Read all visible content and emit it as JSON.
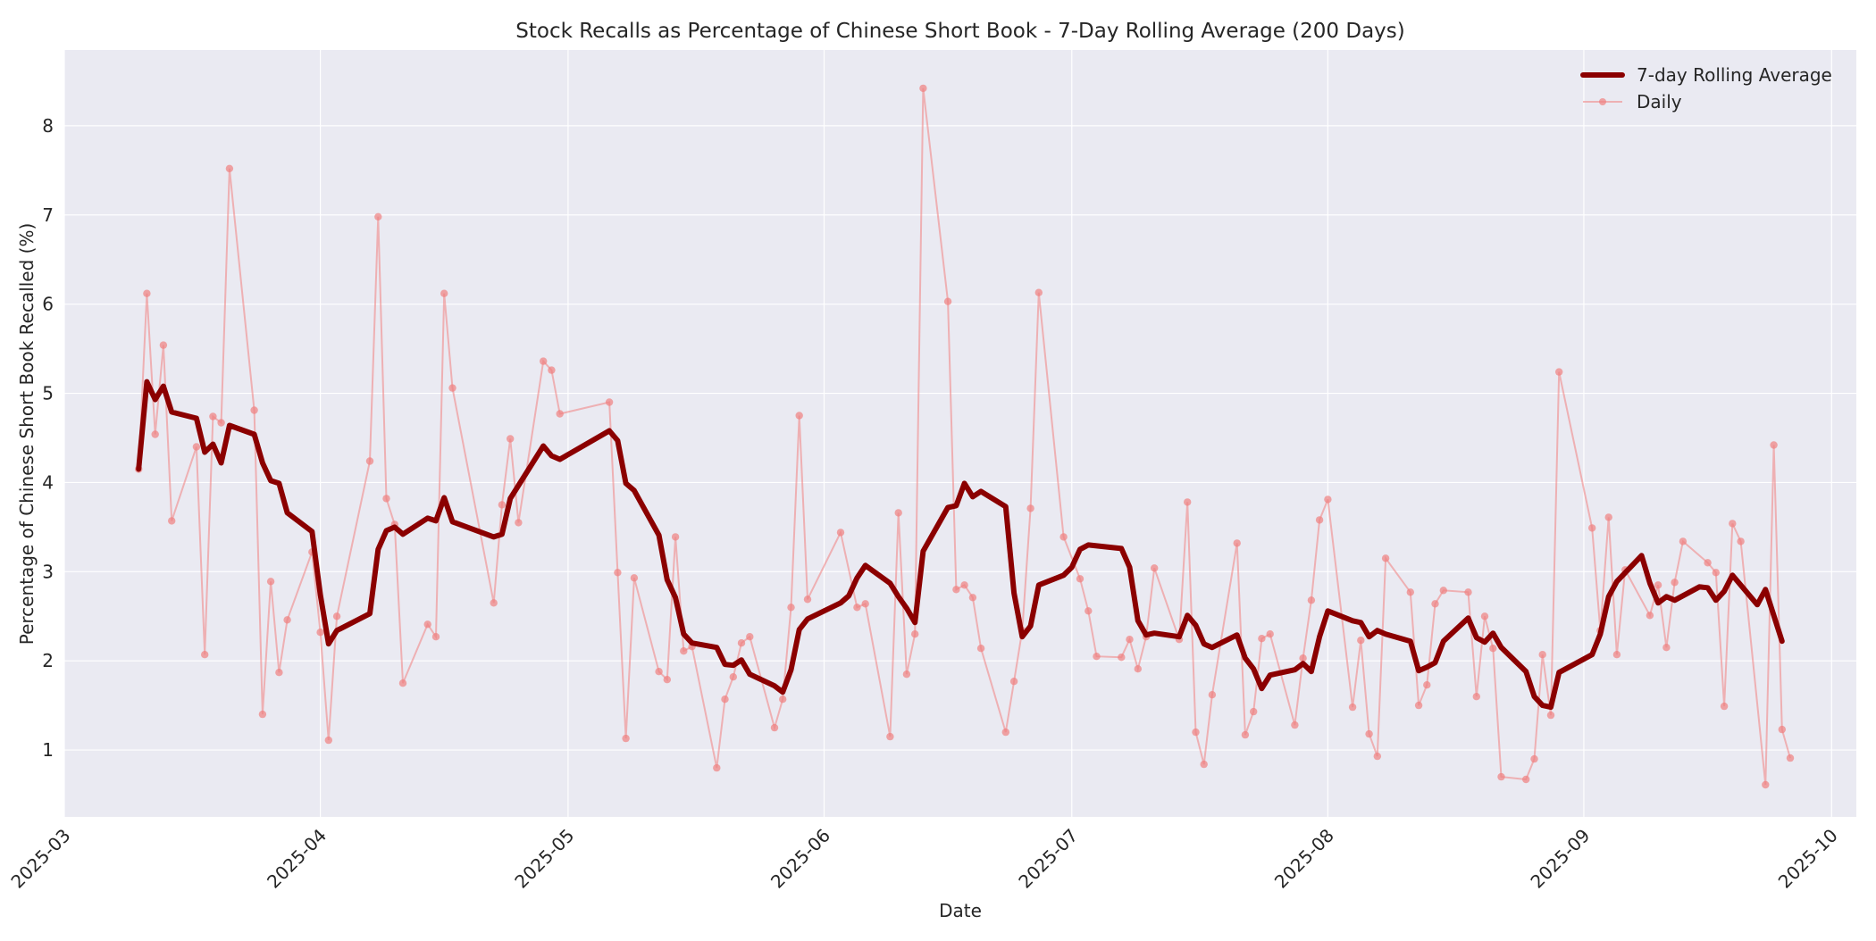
{
  "chart_data": {
    "type": "line",
    "title": "Stock Recalls as Percentage of Chinese Short Book - 7-Day Rolling Average (200 Days)",
    "xlabel": "Date",
    "ylabel": "Percentage of Chinese Short Book Recalled (%)",
    "ylim": [
      0.25,
      8.85
    ],
    "xlim": [
      "2025-03-01",
      "2025-10-04"
    ],
    "grid": true,
    "legend_position": "upper right",
    "x_ticks": [
      "2025-03",
      "2025-04",
      "2025-05",
      "2025-06",
      "2025-07",
      "2025-08",
      "2025-09",
      "2025-10"
    ],
    "y_ticks": [
      1,
      2,
      3,
      4,
      5,
      6,
      7,
      8
    ],
    "colors": {
      "rolling": "#8b0000",
      "daily": "#f08080",
      "plot_background": "#eaeaf2",
      "grid": "#ffffff"
    },
    "series": [
      {
        "name": "7-day Rolling Average",
        "style": "thick-line",
        "points": [
          [
            "2025-03-10",
            4.15
          ],
          [
            "2025-03-11",
            5.13
          ],
          [
            "2025-03-12",
            4.93
          ],
          [
            "2025-03-13",
            5.08
          ],
          [
            "2025-03-14",
            4.79
          ],
          [
            "2025-03-17",
            4.72
          ],
          [
            "2025-03-18",
            4.34
          ],
          [
            "2025-03-19",
            4.43
          ],
          [
            "2025-03-20",
            4.22
          ],
          [
            "2025-03-21",
            4.64
          ],
          [
            "2025-03-24",
            4.54
          ],
          [
            "2025-03-25",
            4.22
          ],
          [
            "2025-03-26",
            4.02
          ],
          [
            "2025-03-27",
            3.99
          ],
          [
            "2025-03-28",
            3.66
          ],
          [
            "2025-03-31",
            3.45
          ],
          [
            "2025-04-01",
            2.74
          ],
          [
            "2025-04-02",
            2.19
          ],
          [
            "2025-04-03",
            2.34
          ],
          [
            "2025-04-07",
            2.53
          ],
          [
            "2025-04-08",
            3.25
          ],
          [
            "2025-04-09",
            3.46
          ],
          [
            "2025-04-10",
            3.5
          ],
          [
            "2025-04-11",
            3.42
          ],
          [
            "2025-04-14",
            3.6
          ],
          [
            "2025-04-15",
            3.57
          ],
          [
            "2025-04-16",
            3.83
          ],
          [
            "2025-04-17",
            3.56
          ],
          [
            "2025-04-22",
            3.39
          ],
          [
            "2025-04-23",
            3.42
          ],
          [
            "2025-04-24",
            3.82
          ],
          [
            "2025-04-28",
            4.41
          ],
          [
            "2025-04-29",
            4.3
          ],
          [
            "2025-04-30",
            4.26
          ],
          [
            "2025-05-06",
            4.58
          ],
          [
            "2025-05-07",
            4.47
          ],
          [
            "2025-05-08",
            3.99
          ],
          [
            "2025-05-09",
            3.91
          ],
          [
            "2025-05-12",
            3.41
          ],
          [
            "2025-05-13",
            2.91
          ],
          [
            "2025-05-14",
            2.71
          ],
          [
            "2025-05-15",
            2.3
          ],
          [
            "2025-05-16",
            2.2
          ],
          [
            "2025-05-19",
            2.15
          ],
          [
            "2025-05-20",
            1.96
          ],
          [
            "2025-05-21",
            1.95
          ],
          [
            "2025-05-22",
            2.01
          ],
          [
            "2025-05-23",
            1.85
          ],
          [
            "2025-05-26",
            1.72
          ],
          [
            "2025-05-27",
            1.65
          ],
          [
            "2025-05-28",
            1.9
          ],
          [
            "2025-05-29",
            2.35
          ],
          [
            "2025-05-30",
            2.47
          ],
          [
            "2025-06-03",
            2.65
          ],
          [
            "2025-06-04",
            2.73
          ],
          [
            "2025-06-05",
            2.93
          ],
          [
            "2025-06-06",
            3.07
          ],
          [
            "2025-06-09",
            2.87
          ],
          [
            "2025-06-10",
            2.72
          ],
          [
            "2025-06-11",
            2.59
          ],
          [
            "2025-06-12",
            2.43
          ],
          [
            "2025-06-13",
            3.23
          ],
          [
            "2025-06-16",
            3.72
          ],
          [
            "2025-06-17",
            3.74
          ],
          [
            "2025-06-18",
            3.99
          ],
          [
            "2025-06-19",
            3.84
          ],
          [
            "2025-06-20",
            3.9
          ],
          [
            "2025-06-23",
            3.73
          ],
          [
            "2025-06-24",
            2.76
          ],
          [
            "2025-06-25",
            2.27
          ],
          [
            "2025-06-26",
            2.39
          ],
          [
            "2025-06-27",
            2.85
          ],
          [
            "2025-06-30",
            2.96
          ],
          [
            "2025-07-01",
            3.05
          ],
          [
            "2025-07-02",
            3.25
          ],
          [
            "2025-07-03",
            3.3
          ],
          [
            "2025-07-07",
            3.26
          ],
          [
            "2025-07-08",
            3.05
          ],
          [
            "2025-07-09",
            2.45
          ],
          [
            "2025-07-10",
            2.29
          ],
          [
            "2025-07-11",
            2.31
          ],
          [
            "2025-07-14",
            2.27
          ],
          [
            "2025-07-15",
            2.51
          ],
          [
            "2025-07-16",
            2.4
          ],
          [
            "2025-07-17",
            2.19
          ],
          [
            "2025-07-18",
            2.15
          ],
          [
            "2025-07-21",
            2.29
          ],
          [
            "2025-07-22",
            2.03
          ],
          [
            "2025-07-23",
            1.91
          ],
          [
            "2025-07-24",
            1.69
          ],
          [
            "2025-07-25",
            1.84
          ],
          [
            "2025-07-28",
            1.9
          ],
          [
            "2025-07-29",
            1.97
          ],
          [
            "2025-07-30",
            1.88
          ],
          [
            "2025-07-31",
            2.27
          ],
          [
            "2025-08-01",
            2.56
          ],
          [
            "2025-08-04",
            2.45
          ],
          [
            "2025-08-05",
            2.43
          ],
          [
            "2025-08-06",
            2.27
          ],
          [
            "2025-08-07",
            2.34
          ],
          [
            "2025-08-08",
            2.3
          ],
          [
            "2025-08-11",
            2.22
          ],
          [
            "2025-08-12",
            1.89
          ],
          [
            "2025-08-13",
            1.93
          ],
          [
            "2025-08-14",
            1.98
          ],
          [
            "2025-08-15",
            2.22
          ],
          [
            "2025-08-18",
            2.48
          ],
          [
            "2025-08-19",
            2.26
          ],
          [
            "2025-08-20",
            2.21
          ],
          [
            "2025-08-21",
            2.31
          ],
          [
            "2025-08-22",
            2.15
          ],
          [
            "2025-08-25",
            1.88
          ],
          [
            "2025-08-26",
            1.6
          ],
          [
            "2025-08-27",
            1.5
          ],
          [
            "2025-08-28",
            1.48
          ],
          [
            "2025-08-29",
            1.87
          ],
          [
            "2025-09-02",
            2.07
          ],
          [
            "2025-09-03",
            2.3
          ],
          [
            "2025-09-04",
            2.72
          ],
          [
            "2025-09-05",
            2.89
          ],
          [
            "2025-09-08",
            3.18
          ],
          [
            "2025-09-09",
            2.87
          ],
          [
            "2025-09-10",
            2.65
          ],
          [
            "2025-09-11",
            2.72
          ],
          [
            "2025-09-12",
            2.68
          ],
          [
            "2025-09-15",
            2.83
          ],
          [
            "2025-09-16",
            2.82
          ],
          [
            "2025-09-17",
            2.68
          ],
          [
            "2025-09-18",
            2.78
          ],
          [
            "2025-09-19",
            2.96
          ],
          [
            "2025-09-22",
            2.63
          ],
          [
            "2025-09-23",
            2.8
          ],
          [
            "2025-09-25",
            2.22
          ]
        ]
      },
      {
        "name": "Daily",
        "style": "thin-line-markers",
        "points": [
          [
            "2025-03-10",
            4.15
          ],
          [
            "2025-03-11",
            6.12
          ],
          [
            "2025-03-12",
            4.54
          ],
          [
            "2025-03-13",
            5.54
          ],
          [
            "2025-03-14",
            3.57
          ],
          [
            "2025-03-17",
            4.4
          ],
          [
            "2025-03-18",
            2.07
          ],
          [
            "2025-03-19",
            4.74
          ],
          [
            "2025-03-20",
            4.67
          ],
          [
            "2025-03-21",
            7.52
          ],
          [
            "2025-03-24",
            4.81
          ],
          [
            "2025-03-25",
            1.4
          ],
          [
            "2025-03-26",
            2.89
          ],
          [
            "2025-03-27",
            1.87
          ],
          [
            "2025-03-28",
            2.46
          ],
          [
            "2025-03-31",
            3.22
          ],
          [
            "2025-04-01",
            2.32
          ],
          [
            "2025-04-02",
            1.11
          ],
          [
            "2025-04-03",
            2.5
          ],
          [
            "2025-04-07",
            4.24
          ],
          [
            "2025-04-08",
            6.98
          ],
          [
            "2025-04-09",
            3.82
          ],
          [
            "2025-04-10",
            3.53
          ],
          [
            "2025-04-11",
            1.75
          ],
          [
            "2025-04-14",
            2.41
          ],
          [
            "2025-04-15",
            2.27
          ],
          [
            "2025-04-16",
            6.12
          ],
          [
            "2025-04-17",
            5.06
          ],
          [
            "2025-04-22",
            2.65
          ],
          [
            "2025-04-23",
            3.75
          ],
          [
            "2025-04-24",
            4.49
          ],
          [
            "2025-04-25",
            3.55
          ],
          [
            "2025-04-28",
            5.36
          ],
          [
            "2025-04-29",
            5.26
          ],
          [
            "2025-04-30",
            4.77
          ],
          [
            "2025-05-06",
            4.9
          ],
          [
            "2025-05-07",
            2.99
          ],
          [
            "2025-05-08",
            1.13
          ],
          [
            "2025-05-09",
            2.93
          ],
          [
            "2025-05-12",
            1.88
          ],
          [
            "2025-05-13",
            1.79
          ],
          [
            "2025-05-14",
            3.39
          ],
          [
            "2025-05-15",
            2.11
          ],
          [
            "2025-05-16",
            2.16
          ],
          [
            "2025-05-19",
            0.8
          ],
          [
            "2025-05-20",
            1.57
          ],
          [
            "2025-05-21",
            1.82
          ],
          [
            "2025-05-22",
            2.2
          ],
          [
            "2025-05-23",
            2.27
          ],
          [
            "2025-05-26",
            1.25
          ],
          [
            "2025-05-27",
            1.57
          ],
          [
            "2025-05-28",
            2.6
          ],
          [
            "2025-05-29",
            4.75
          ],
          [
            "2025-05-30",
            2.69
          ],
          [
            "2025-06-03",
            3.44
          ],
          [
            "2025-06-05",
            2.6
          ],
          [
            "2025-06-06",
            2.64
          ],
          [
            "2025-06-09",
            1.15
          ],
          [
            "2025-06-10",
            3.66
          ],
          [
            "2025-06-11",
            1.85
          ],
          [
            "2025-06-12",
            2.3
          ],
          [
            "2025-06-13",
            8.42
          ],
          [
            "2025-06-16",
            6.03
          ],
          [
            "2025-06-17",
            2.8
          ],
          [
            "2025-06-18",
            2.85
          ],
          [
            "2025-06-19",
            2.71
          ],
          [
            "2025-06-20",
            2.14
          ],
          [
            "2025-06-23",
            1.2
          ],
          [
            "2025-06-24",
            1.77
          ],
          [
            "2025-06-25",
            2.34
          ],
          [
            "2025-06-26",
            3.71
          ],
          [
            "2025-06-27",
            6.13
          ],
          [
            "2025-06-30",
            3.39
          ],
          [
            "2025-07-02",
            2.92
          ],
          [
            "2025-07-03",
            2.56
          ],
          [
            "2025-07-04",
            2.05
          ],
          [
            "2025-07-07",
            2.04
          ],
          [
            "2025-07-08",
            2.24
          ],
          [
            "2025-07-09",
            1.91
          ],
          [
            "2025-07-10",
            2.27
          ],
          [
            "2025-07-11",
            3.04
          ],
          [
            "2025-07-14",
            2.24
          ],
          [
            "2025-07-15",
            3.78
          ],
          [
            "2025-07-16",
            1.2
          ],
          [
            "2025-07-17",
            0.84
          ],
          [
            "2025-07-18",
            1.62
          ],
          [
            "2025-07-21",
            3.32
          ],
          [
            "2025-07-22",
            1.17
          ],
          [
            "2025-07-23",
            1.43
          ],
          [
            "2025-07-24",
            2.25
          ],
          [
            "2025-07-25",
            2.3
          ],
          [
            "2025-07-28",
            1.28
          ],
          [
            "2025-07-29",
            2.03
          ],
          [
            "2025-07-30",
            2.68
          ],
          [
            "2025-07-31",
            3.58
          ],
          [
            "2025-08-01",
            3.81
          ],
          [
            "2025-08-04",
            1.48
          ],
          [
            "2025-08-05",
            2.23
          ],
          [
            "2025-08-06",
            1.18
          ],
          [
            "2025-08-07",
            0.93
          ],
          [
            "2025-08-08",
            3.15
          ],
          [
            "2025-08-11",
            2.77
          ],
          [
            "2025-08-12",
            1.5
          ],
          [
            "2025-08-13",
            1.73
          ],
          [
            "2025-08-14",
            2.64
          ],
          [
            "2025-08-15",
            2.79
          ],
          [
            "2025-08-18",
            2.77
          ],
          [
            "2025-08-19",
            1.6
          ],
          [
            "2025-08-20",
            2.5
          ],
          [
            "2025-08-21",
            2.14
          ],
          [
            "2025-08-22",
            0.7
          ],
          [
            "2025-08-25",
            0.67
          ],
          [
            "2025-08-26",
            0.9
          ],
          [
            "2025-08-27",
            2.07
          ],
          [
            "2025-08-28",
            1.39
          ],
          [
            "2025-08-29",
            5.24
          ],
          [
            "2025-09-02",
            3.49
          ],
          [
            "2025-09-03",
            2.34
          ],
          [
            "2025-09-04",
            3.61
          ],
          [
            "2025-09-05",
            2.07
          ],
          [
            "2025-09-06",
            3.02
          ],
          [
            "2025-09-09",
            2.51
          ],
          [
            "2025-09-10",
            2.85
          ],
          [
            "2025-09-11",
            2.15
          ],
          [
            "2025-09-12",
            2.88
          ],
          [
            "2025-09-13",
            3.34
          ],
          [
            "2025-09-16",
            3.1
          ],
          [
            "2025-09-17",
            2.99
          ],
          [
            "2025-09-18",
            1.49
          ],
          [
            "2025-09-19",
            3.54
          ],
          [
            "2025-09-20",
            3.34
          ],
          [
            "2025-09-23",
            0.61
          ],
          [
            "2025-09-24",
            4.42
          ],
          [
            "2025-09-25",
            1.23
          ],
          [
            "2025-09-26",
            0.91
          ]
        ]
      }
    ]
  },
  "legend": {
    "items": [
      {
        "label": "7-day Rolling Average"
      },
      {
        "label": "Daily"
      }
    ]
  }
}
